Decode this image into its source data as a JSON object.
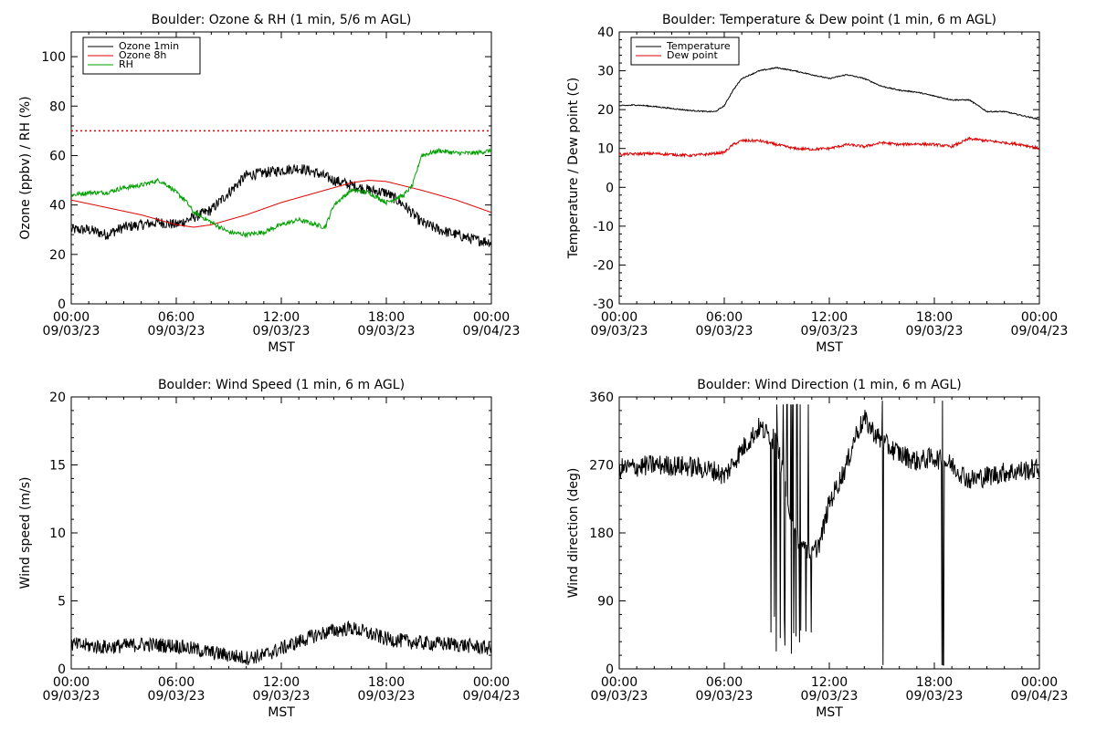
{
  "time_axis": {
    "ticks": [
      "00:00",
      "06:00",
      "12:00",
      "18:00",
      "00:00"
    ],
    "dates": [
      "09/03/23",
      "09/03/23",
      "09/03/23",
      "09/03/23",
      "09/04/23"
    ],
    "label": "MST"
  },
  "chart_data": [
    {
      "type": "line",
      "title": "Boulder: Ozone & RH (1 min, 5/6 m AGL)",
      "ylabel": "Ozone (ppbv) / RH (%)",
      "xlim": [
        0,
        24
      ],
      "ylim": [
        0,
        110
      ],
      "yticks": [
        0,
        20,
        40,
        60,
        80,
        100
      ],
      "legend": "top-left",
      "reference_lines": [
        {
          "y": 70,
          "color": "#e00000",
          "style": "dotted"
        }
      ],
      "series": [
        {
          "name": "Ozone 1min",
          "color": "#000000",
          "noise": 2.2,
          "x": [
            0,
            1,
            2,
            3,
            4,
            5,
            6,
            7,
            8,
            9,
            10,
            11,
            12,
            13,
            14,
            15,
            16,
            17,
            18,
            19,
            20,
            21,
            22,
            23,
            24
          ],
          "y": [
            30,
            30,
            28,
            31,
            32,
            33,
            32,
            35,
            38,
            45,
            52,
            53,
            54,
            55,
            53,
            50,
            48,
            46,
            45,
            40,
            33,
            30,
            28,
            26,
            25
          ]
        },
        {
          "name": "Ozone 8h",
          "color": "#e00000",
          "noise": 0,
          "x": [
            0,
            2,
            4,
            6,
            7,
            8,
            10,
            12,
            14,
            16,
            17,
            18,
            20,
            22,
            24
          ],
          "y": [
            42,
            39,
            36,
            32,
            31,
            32,
            36,
            41,
            45,
            49,
            50,
            49.5,
            46,
            42,
            37
          ]
        },
        {
          "name": "RH",
          "color": "#00a000",
          "noise": 0.9,
          "x": [
            0,
            1,
            2,
            3,
            4,
            5,
            5.5,
            6,
            6.5,
            7,
            7.5,
            8,
            9,
            10,
            11,
            12,
            13,
            14,
            14.5,
            15,
            16,
            17,
            18,
            19,
            19.5,
            20,
            21,
            22,
            23,
            24
          ],
          "y": [
            44,
            45,
            45,
            47,
            48,
            50,
            48,
            45,
            42,
            37,
            35,
            33,
            29,
            28,
            29,
            32,
            34,
            32,
            31,
            40,
            46,
            45,
            41,
            44,
            48,
            60,
            62,
            61,
            61,
            62
          ]
        }
      ]
    },
    {
      "type": "line",
      "title": "Boulder: Temperature & Dew point (1 min, 6 m AGL)",
      "ylabel": "Temperature / Dew point (C)",
      "xlim": [
        0,
        24
      ],
      "ylim": [
        -30,
        40
      ],
      "yticks": [
        -30,
        -20,
        -10,
        0,
        10,
        20,
        30,
        40
      ],
      "legend": "top-left",
      "series": [
        {
          "name": "Temperature",
          "color": "#000000",
          "noise": 0.15,
          "x": [
            0,
            1,
            2,
            3,
            4,
            5,
            5.5,
            6,
            6.5,
            7,
            8,
            9,
            10,
            11,
            12,
            13,
            14,
            15,
            16,
            17,
            18,
            19,
            20,
            21,
            22,
            23,
            24
          ],
          "y": [
            21,
            21.2,
            20.8,
            20.3,
            19.8,
            19.5,
            19.5,
            21,
            25,
            28,
            30,
            30.8,
            30,
            29,
            28,
            29,
            28,
            26,
            25,
            24.5,
            23.5,
            22.5,
            22.5,
            19.5,
            19.5,
            18.5,
            17.5
          ]
        },
        {
          "name": "Dew point",
          "color": "#e00000",
          "noise": 0.35,
          "x": [
            0,
            2,
            4,
            5,
            6,
            6.5,
            7,
            8,
            9,
            10,
            11,
            12,
            13,
            14,
            15,
            16,
            17,
            18,
            19,
            20,
            21,
            22,
            23,
            24
          ],
          "y": [
            8.5,
            8.7,
            8.2,
            8.5,
            9,
            11,
            12,
            12,
            11,
            10,
            9.8,
            10,
            11,
            10.5,
            11.5,
            11,
            11.2,
            11,
            10.5,
            12.5,
            12,
            11.5,
            11,
            10
          ]
        }
      ]
    },
    {
      "type": "line",
      "title": "Boulder: Wind Speed (1 min, 6 m AGL)",
      "ylabel": "Wind speed (m/s)",
      "xlim": [
        0,
        24
      ],
      "ylim": [
        0,
        20
      ],
      "yticks": [
        0,
        5,
        10,
        15,
        20
      ],
      "series": [
        {
          "name": "",
          "color": "#000000",
          "noise": 0.55,
          "x": [
            0,
            2,
            4,
            6,
            8,
            10,
            11,
            12,
            13,
            14,
            15,
            16,
            17,
            18,
            20,
            22,
            24
          ],
          "y": [
            1.8,
            1.6,
            1.8,
            1.7,
            1.2,
            0.8,
            1.0,
            1.5,
            2.0,
            2.5,
            2.8,
            3.0,
            2.6,
            2.2,
            1.9,
            1.8,
            1.5
          ]
        }
      ]
    },
    {
      "type": "line",
      "title": "Boulder: Wind Direction (1 min, 6 m AGL)",
      "ylabel": "Wind direction (deg)",
      "xlim": [
        0,
        24
      ],
      "ylim": [
        0,
        360
      ],
      "yticks": [
        0,
        90,
        180,
        270,
        360
      ],
      "series": [
        {
          "name": "",
          "color": "#000000",
          "noise": 14,
          "x": [
            0,
            2,
            4,
            5.5,
            6,
            7,
            8,
            9,
            10,
            11,
            11.5,
            12,
            13,
            13.5,
            14,
            15,
            16,
            17,
            18,
            19,
            20,
            22,
            24
          ],
          "y": [
            265,
            270,
            268,
            262,
            255,
            290,
            320,
            300,
            180,
            150,
            170,
            220,
            270,
            310,
            330,
            300,
            285,
            275,
            280,
            270,
            250,
            260,
            265
          ]
        }
      ]
    }
  ]
}
